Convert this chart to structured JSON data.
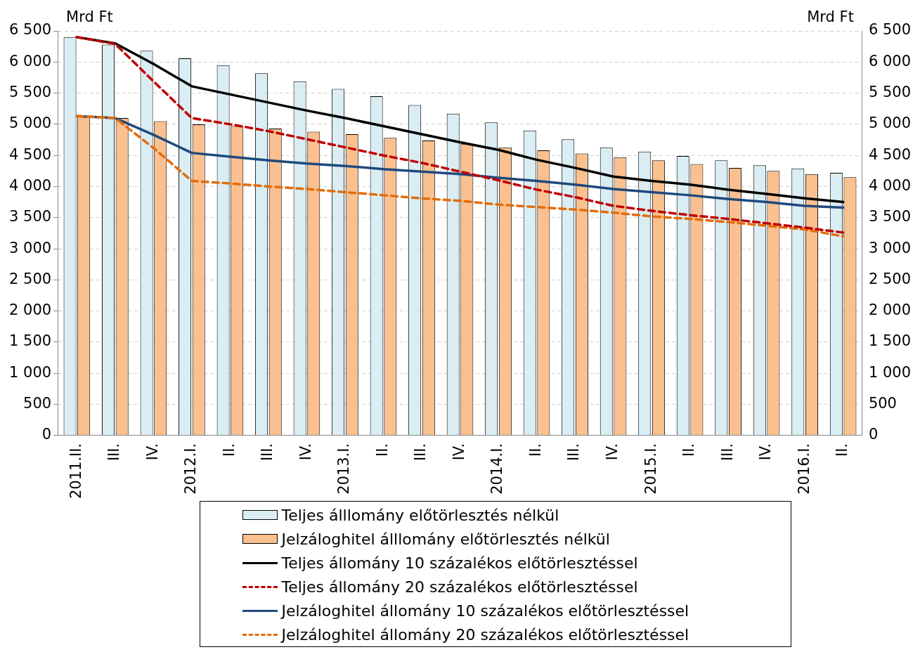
{
  "chart_data": {
    "type": "bar",
    "ylabel": "Mrd Ft",
    "y2label": "Mrd Ft",
    "categories": [
      "2011.II.",
      "III.",
      "IV.",
      "2012.I.",
      "II.",
      "III.",
      "IV.",
      "2013.I.",
      "II.",
      "III.",
      "IV.",
      "2014.I.",
      "II.",
      "III.",
      "IV.",
      "2015.I.",
      "II.",
      "III.",
      "IV.",
      "2016.I.",
      "II."
    ],
    "series": [
      {
        "name": "Teljes álllomány előtörlesztés nélkül",
        "type": "bar",
        "color": "#daedf3",
        "values": [
          6400,
          6280,
          6180,
          6060,
          5950,
          5820,
          5690,
          5570,
          5450,
          5310,
          5170,
          5030,
          4900,
          4760,
          4630,
          4560,
          4490,
          4420,
          4340,
          4290,
          4220
        ]
      },
      {
        "name": "Jelzáloghitel álllomány előtörlesztés nélkül",
        "type": "bar",
        "color": "#fac090",
        "values": [
          5130,
          5100,
          5050,
          5000,
          4970,
          4930,
          4880,
          4840,
          4780,
          4740,
          4680,
          4630,
          4580,
          4530,
          4470,
          4420,
          4360,
          4300,
          4250,
          4200,
          4150
        ]
      },
      {
        "name": "Teljes állomány 10 százalékos előtörlesztéssel",
        "type": "line",
        "line_style": "solid",
        "color": "#000000",
        "values": [
          6400,
          6300,
          5970,
          5610,
          5480,
          5350,
          5220,
          5100,
          4970,
          4840,
          4710,
          4590,
          4430,
          4300,
          4160,
          4090,
          4030,
          3950,
          3880,
          3810,
          3750
        ]
      },
      {
        "name": "Teljes állomány 20 százalékos előtörlesztéssel",
        "type": "line",
        "line_style": "dashed",
        "color": "#c00000",
        "values": [
          6400,
          6290,
          5690,
          5100,
          5000,
          4890,
          4760,
          4630,
          4500,
          4380,
          4240,
          4100,
          3950,
          3830,
          3690,
          3610,
          3540,
          3480,
          3410,
          3340,
          3260
        ]
      },
      {
        "name": "Jelzáloghitel állomány 10 százalékos előtörlesztéssel",
        "type": "line",
        "line_style": "solid",
        "color": "#1f497d",
        "values": [
          5130,
          5100,
          4830,
          4540,
          4480,
          4420,
          4370,
          4330,
          4280,
          4240,
          4200,
          4140,
          4090,
          4030,
          3960,
          3910,
          3860,
          3800,
          3750,
          3690,
          3660
        ]
      },
      {
        "name": "Jelzáloghitel állomány 20 százalékos előtörlesztéssel",
        "type": "line",
        "line_style": "dashed",
        "color": "#e46c0a",
        "values": [
          5130,
          5100,
          4620,
          4090,
          4050,
          4000,
          3960,
          3910,
          3860,
          3810,
          3770,
          3710,
          3670,
          3630,
          3580,
          3520,
          3480,
          3430,
          3370,
          3310,
          3200
        ]
      }
    ],
    "ylim": [
      0,
      6500
    ],
    "y2lim": [
      0,
      6500
    ],
    "yticks": [
      0,
      500,
      {
        "value": 1000,
        "label": "1 000"
      },
      {
        "value": 1500,
        "label": "1 500"
      },
      {
        "value": 2000,
        "label": "2 000"
      },
      {
        "value": 2500,
        "label": "2 500"
      },
      {
        "value": 3000,
        "label": "3 000"
      },
      {
        "value": 3500,
        "label": "3 500"
      },
      {
        "value": 4000,
        "label": "4 000"
      },
      {
        "value": 4500,
        "label": "4 500"
      },
      {
        "value": 5000,
        "label": "5 000"
      },
      {
        "value": 5500,
        "label": "5 500"
      },
      {
        "value": 6000,
        "label": "6 000"
      },
      {
        "value": 6500,
        "label": "6 500"
      }
    ],
    "y2ticks": [
      0,
      500,
      {
        "value": 1000,
        "label": "1 000"
      },
      {
        "value": 1500,
        "label": "1 500"
      },
      {
        "value": 2000,
        "label": "2 000"
      },
      {
        "value": 2500,
        "label": "2 500"
      },
      {
        "value": 3000,
        "label": "3 000"
      },
      {
        "value": 3500,
        "label": "3 500"
      },
      {
        "value": 4000,
        "label": "4 000"
      },
      {
        "value": 4500,
        "label": "4 500"
      },
      {
        "value": 5000,
        "label": "5 000"
      },
      {
        "value": 5500,
        "label": "5 500"
      },
      {
        "value": 6000,
        "label": "6 000"
      },
      {
        "value": 6500,
        "label": "6 500"
      }
    ],
    "grid": "y",
    "legend": "bottom"
  }
}
